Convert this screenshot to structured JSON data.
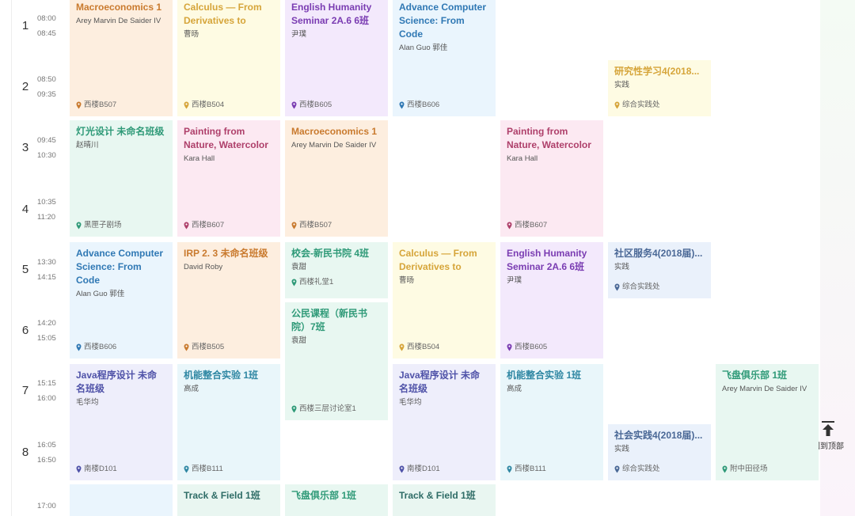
{
  "periods": [
    {
      "number": "1",
      "start": "08:00",
      "end": "08:45"
    },
    {
      "number": "2",
      "start": "08:50",
      "end": "09:35"
    },
    {
      "number": "3",
      "start": "09:45",
      "end": "10:30"
    },
    {
      "number": "4",
      "start": "10:35",
      "end": "11:20"
    },
    {
      "number": "5",
      "start": "13:30",
      "end": "14:15"
    },
    {
      "number": "6",
      "start": "14:20",
      "end": "15:05"
    },
    {
      "number": "7",
      "start": "15:15",
      "end": "16:00"
    },
    {
      "number": "8",
      "start": "16:05",
      "end": "16:50"
    },
    {
      "start": "17:00"
    }
  ],
  "days": [
    {
      "cards": [
        {
          "title": "Macroeconomics 1",
          "teacher": "Arey Marvin De Saider IV",
          "location": "西楼B507"
        },
        {
          "title": "灯光设计 未命名班级",
          "teacher": "赵晴川",
          "location": "黑匣子剧场"
        },
        {
          "title": "Advance Computer Science: From Code",
          "teacher": "Alan Guo 郭佳",
          "location": "西楼B606"
        },
        {
          "title": "Java程序设计 未命名班级",
          "teacher": "毛华均",
          "location": "南楼D101"
        },
        {}
      ]
    },
    {
      "cards": [
        {
          "title": "Calculus — From Derivatives to",
          "teacher": "曹旸",
          "location": "西楼B504"
        },
        {
          "title": "Painting from Nature, Watercolor",
          "teacher": "Kara Hall",
          "location": "西楼B607"
        },
        {
          "title": "IRP 2. 3 未命名班级",
          "teacher": "David Roby",
          "location": "西楼B505"
        },
        {
          "title": "机能整合实验 1班",
          "teacher": "高成",
          "location": "西楼B111"
        },
        {
          "title": "Track & Field 1班"
        }
      ]
    },
    {
      "cards": [
        {
          "title": "English Humanity Seminar 2A.6 6班",
          "teacher": "尹璞",
          "location": "西楼B605"
        },
        {
          "title": "Macroeconomics 1",
          "teacher": "Arey Marvin De Saider IV",
          "location": "西楼B507"
        },
        {
          "title": "校会-新民书院 4班",
          "teacher": "袁甜",
          "location": "西楼礼堂1"
        },
        {
          "title": "公民课程（新民书院）7班",
          "teacher": "袁甜",
          "location": "西楼三层讨论室1"
        },
        {
          "title": "飞盘俱乐部 1班"
        }
      ]
    },
    {
      "cards": [
        {
          "title": "Advance Computer Science: From Code",
          "teacher": "Alan Guo 郭佳",
          "location": "西楼B606"
        },
        {
          "title": "Calculus — From Derivatives to",
          "teacher": "曹旸",
          "location": "西楼B504"
        },
        {
          "title": "Java程序设计 未命名班级",
          "teacher": "毛华均",
          "location": "南楼D101"
        },
        {
          "title": "Track & Field 1班"
        }
      ]
    },
    {
      "cards": [
        {
          "title": "Painting from Nature, Watercolor",
          "teacher": "Kara Hall",
          "location": "西楼B607"
        },
        {
          "title": "English Humanity Seminar 2A.6 6班",
          "teacher": "尹璞",
          "location": "西楼B605"
        },
        {
          "title": "机能整合实验 1班",
          "teacher": "高成",
          "location": "西楼B111"
        }
      ]
    },
    {
      "cards": [
        {
          "title": "研究性学习4(2018...",
          "teacher": "实践",
          "location": "综合实践处"
        },
        {
          "title": "社区服务4(2018届)...",
          "teacher": "实践",
          "location": "综合实践处"
        },
        {
          "title": "社会实践4(2018届)...",
          "teacher": "实践",
          "location": "综合实践处"
        }
      ]
    },
    {
      "cards": [
        {
          "title": "飞盘俱乐部 1班",
          "teacher": "Arey Marvin De Saider IV",
          "location": "附中田径场"
        }
      ]
    }
  ],
  "back_to_top": "回到顶部"
}
